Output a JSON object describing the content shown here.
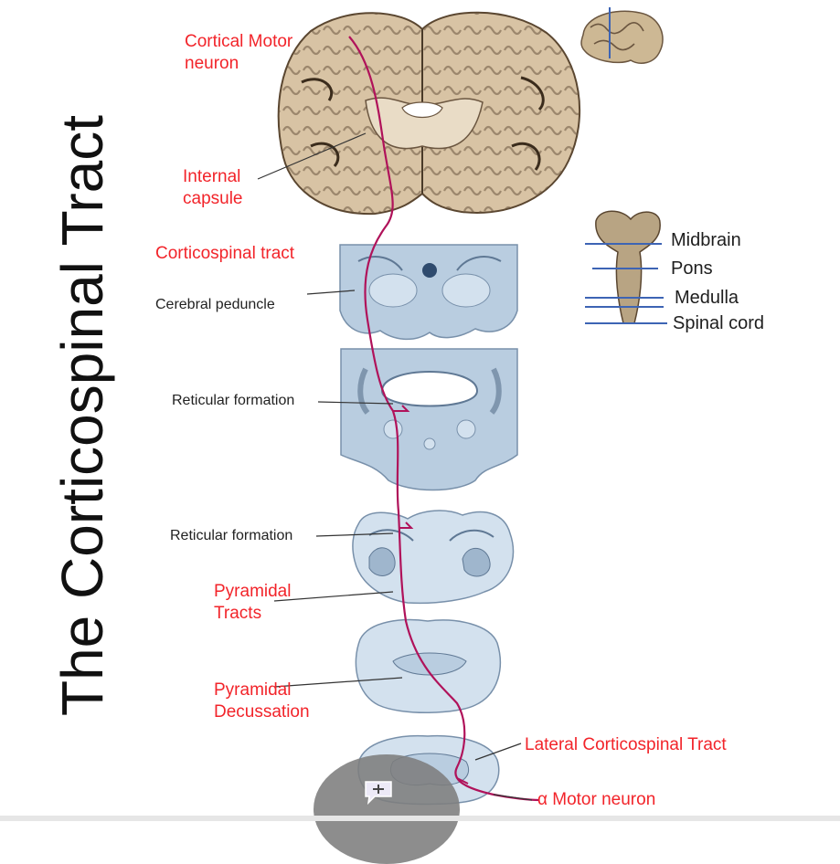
{
  "title": "The Corticospinal Tract",
  "labels": {
    "cortical_motor_neuron": [
      "Cortical Motor",
      "neuron"
    ],
    "internal_capsule": [
      "Internal",
      "capsule"
    ],
    "corticospinal_tract": "Corticospinal tract",
    "cerebral_peduncle": "Cerebral peduncle",
    "reticular_formation_pons": "Reticular formation",
    "reticular_formation_medulla": "Reticular formation",
    "pyramidal_tracts": [
      "Pyramidal",
      "Tracts"
    ],
    "pyramidal_decussation": [
      "Pyramidal",
      "Decussation"
    ],
    "lateral_corticospinal_tract": "Lateral Corticospinal Tract",
    "alpha_motor_neuron": "α Motor neuron"
  },
  "legend": {
    "items": [
      "Midbrain",
      "Pons",
      "Medulla",
      "Spinal cord"
    ]
  },
  "colors": {
    "label_red": "#f2242a",
    "tract_line": "#b0125a",
    "brain_tissue": "#d8c3a4",
    "section_blue": "#b9cde0"
  },
  "icons": [
    "brain-thumbnail-icon",
    "brainstem-levels-icon",
    "chat-bubble-icon"
  ]
}
